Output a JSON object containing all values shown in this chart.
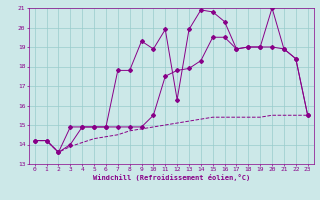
{
  "x": [
    0,
    1,
    2,
    3,
    4,
    5,
    6,
    7,
    8,
    9,
    10,
    11,
    12,
    13,
    14,
    15,
    16,
    17,
    18,
    19,
    20,
    21,
    22,
    23
  ],
  "line_top": [
    14.2,
    14.2,
    13.6,
    14.9,
    14.9,
    14.9,
    14.9,
    17.8,
    17.8,
    19.3,
    18.9,
    19.9,
    16.3,
    19.9,
    20.9,
    20.8,
    20.3,
    18.9,
    19.0,
    19.0,
    21.0,
    18.9,
    18.4,
    15.5
  ],
  "line_mid": [
    14.2,
    14.2,
    13.6,
    14.0,
    14.9,
    14.9,
    14.9,
    14.9,
    14.9,
    14.9,
    15.5,
    17.5,
    17.8,
    17.9,
    18.3,
    19.5,
    19.5,
    18.9,
    19.0,
    19.0,
    19.0,
    18.9,
    18.4,
    15.5
  ],
  "line_bot": [
    14.2,
    14.2,
    13.6,
    13.9,
    14.1,
    14.3,
    14.4,
    14.5,
    14.7,
    14.8,
    14.9,
    15.0,
    15.1,
    15.2,
    15.3,
    15.4,
    15.4,
    15.4,
    15.4,
    15.4,
    15.5,
    15.5,
    15.5,
    15.5
  ],
  "color": "#880088",
  "bg_color": "#cce8e8",
  "grid_color": "#99cccc",
  "xlabel": "Windchill (Refroidissement éolien,°C)",
  "ylim": [
    13,
    21
  ],
  "xlim": [
    -0.5,
    23.5
  ],
  "yticks": [
    13,
    14,
    15,
    16,
    17,
    18,
    19,
    20,
    21
  ],
  "xticks": [
    0,
    1,
    2,
    3,
    4,
    5,
    6,
    7,
    8,
    9,
    10,
    11,
    12,
    13,
    14,
    15,
    16,
    17,
    18,
    19,
    20,
    21,
    22,
    23
  ],
  "tick_fontsize": 4.5,
  "xlabel_fontsize": 5.0,
  "marker_size": 2.0,
  "linewidth": 0.7
}
